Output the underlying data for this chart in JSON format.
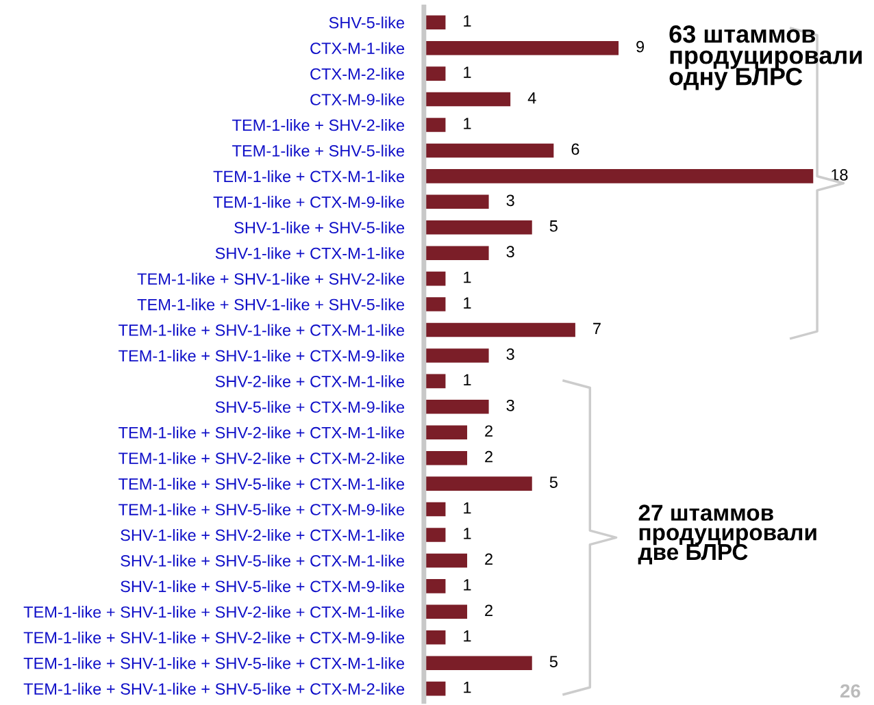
{
  "chart_data": {
    "type": "bar",
    "orientation": "horizontal",
    "categories": [
      "SHV-5-like",
      "CTX-M-1-like",
      "CTX-M-2-like",
      "CTX-M-9-like",
      "TEM-1-like + SHV-2-like",
      "TEM-1-like + SHV-5-like",
      "TEM-1-like + CTX-M-1-like",
      "TEM-1-like + CTX-M-9-like",
      "SHV-1-like + SHV-5-like",
      "SHV-1-like + CTX-M-1-like",
      "TEM-1-like + SHV-1-like + SHV-2-like",
      "TEM-1-like + SHV-1-like + SHV-5-like",
      "TEM-1-like + SHV-1-like + CTX-M-1-like",
      "TEM-1-like + SHV-1-like + CTX-M-9-like",
      "SHV-2-like + CTX-M-1-like",
      "SHV-5-like + CTX-M-9-like",
      "TEM-1-like + SHV-2-like + CTX-M-1-like",
      "TEM-1-like + SHV-2-like + CTX-M-2-like",
      "TEM-1-like + SHV-5-like + CTX-M-1-like",
      "TEM-1-like + SHV-5-like + CTX-M-9-like",
      "SHV-1-like + SHV-2-like + CTX-M-1-like",
      "SHV-1-like + SHV-5-like + CTX-M-1-like",
      "SHV-1-like + SHV-5-like + CTX-M-9-like",
      "TEM-1-like + SHV-1-like + SHV-2-like + CTX-M-1-like",
      "TEM-1-like + SHV-1-like + SHV-2-like + CTX-M-9-like",
      "TEM-1-like + SHV-1-like + SHV-5-like + CTX-M-1-like",
      "TEM-1-like + SHV-1-like + SHV-5-like + CTX-M-2-like"
    ],
    "values": [
      1,
      9,
      1,
      4,
      1,
      6,
      18,
      3,
      5,
      3,
      1,
      1,
      7,
      3,
      1,
      3,
      2,
      2,
      5,
      1,
      1,
      2,
      1,
      2,
      1,
      5,
      1
    ],
    "color": "#7b1e28",
    "data_labels": true,
    "annotations": [
      "63 штаммов\nпродуцировали\nодну БЛРС",
      "27 штаммов\nпродуцировали\nдве БЛРС",
      "26"
    ]
  }
}
